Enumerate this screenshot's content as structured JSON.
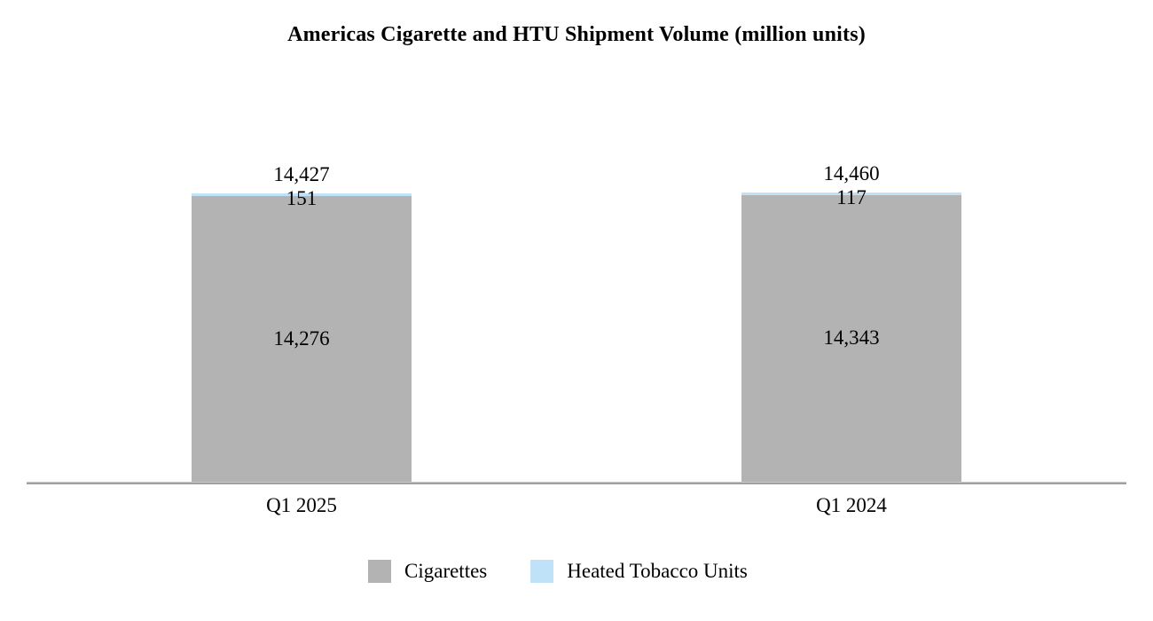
{
  "chart_data": {
    "type": "bar",
    "stacked": true,
    "title": "Americas Cigarette and HTU Shipment Volume (million units)",
    "categories": [
      "Q1 2025",
      "Q1 2024"
    ],
    "series": [
      {
        "name": "Cigarettes",
        "color": "#b3b3b3",
        "values": [
          14276,
          14343
        ]
      },
      {
        "name": "Heated Tobacco Units",
        "color": "#bfe2f8",
        "values": [
          151,
          117
        ]
      }
    ],
    "totals": [
      14427,
      14460
    ],
    "labels": {
      "totals": [
        "14,427",
        "14,460"
      ],
      "htu": [
        "151",
        "117"
      ],
      "cigarettes": [
        "14,276",
        "14,343"
      ]
    },
    "ylim": [
      0,
      14460
    ],
    "grid": false,
    "legend_position": "bottom",
    "axis_color": "#a0a0a0"
  },
  "legend": {
    "items": [
      {
        "label": "Cigarettes",
        "color": "#b3b3b3"
      },
      {
        "label": "Heated Tobacco Units",
        "color": "#bfe2f8"
      }
    ]
  }
}
